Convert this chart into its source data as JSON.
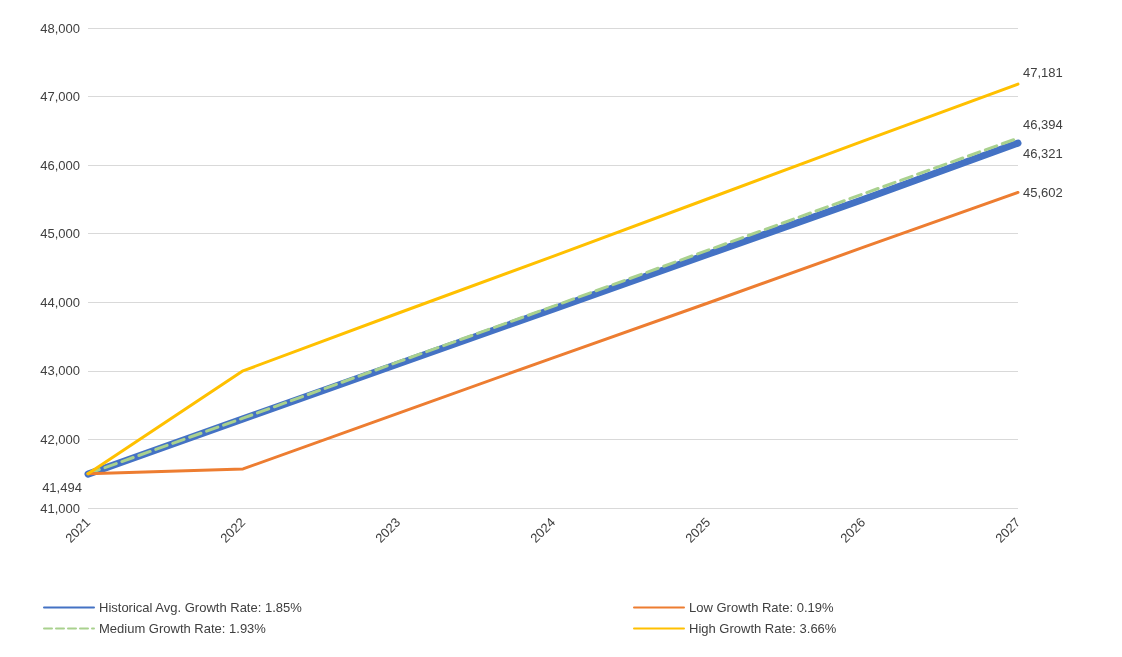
{
  "chart_data": {
    "type": "line",
    "categories": [
      "2021",
      "2022",
      "2023",
      "2024",
      "2025",
      "2026",
      "2027"
    ],
    "series": [
      {
        "name": "Historical Avg. Growth Rate: 1.85%",
        "color": "#4472c4",
        "values": [
          41494,
          42300,
          43100,
          43900,
          44700,
          45500,
          46321
        ],
        "value_labels": [
          "41,494",
          null,
          null,
          null,
          null,
          null,
          "46,321"
        ]
      },
      {
        "name": "Medium Growth Rate: 1.93%",
        "color": "#a9d18e",
        "line_style": "dashed",
        "values": [
          41500,
          42310,
          43130,
          43940,
          44760,
          45580,
          46394
        ],
        "value_labels": [
          null,
          null,
          null,
          null,
          null,
          null,
          "46,394"
        ]
      },
      {
        "name": "Low Growth Rate: 0.19%",
        "color": "#ed7d31",
        "values": [
          41500,
          41570,
          42380,
          43190,
          43990,
          44800,
          45602
        ],
        "value_labels": [
          null,
          null,
          null,
          null,
          null,
          null,
          "45,602"
        ]
      },
      {
        "name": "High Growth Rate: 3.66%",
        "color": "#ffc000",
        "values": [
          41500,
          43000,
          43840,
          44670,
          45510,
          46350,
          47181
        ],
        "value_labels": [
          null,
          null,
          null,
          null,
          null,
          null,
          "47,181"
        ]
      }
    ],
    "ylim": [
      41000,
      48000
    ],
    "yticks": [
      {
        "value": 41000,
        "label": "41,000"
      },
      {
        "value": 42000,
        "label": "42,000"
      },
      {
        "value": 43000,
        "label": "43,000"
      },
      {
        "value": 44000,
        "label": "44,000"
      },
      {
        "value": 45000,
        "label": "45,000"
      },
      {
        "value": 46000,
        "label": "46,000"
      },
      {
        "value": 47000,
        "label": "47,000"
      },
      {
        "value": 48000,
        "label": "48,000"
      }
    ],
    "grid": "y",
    "legend": "bottom",
    "marker": "none",
    "line_style": "solid"
  }
}
